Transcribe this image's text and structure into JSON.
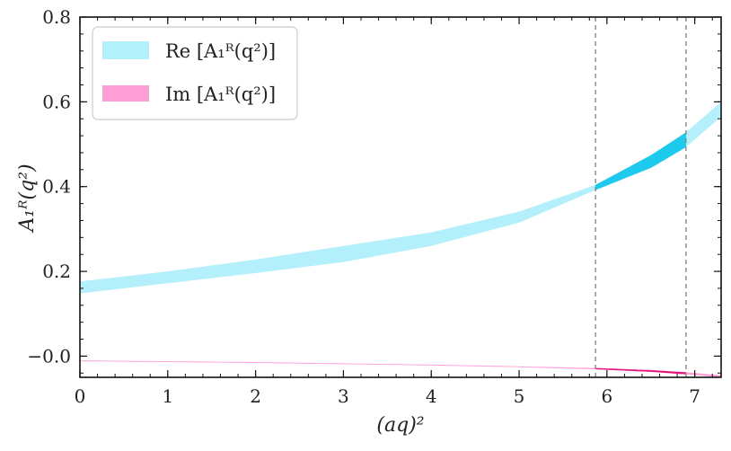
{
  "chart_data": {
    "type": "area",
    "xlabel": "(aq)²",
    "ylabel": "A₁ᴿ(q²)",
    "xlim": [
      0,
      7.3
    ],
    "ylim": [
      -0.05,
      0.8
    ],
    "xticks": [
      0,
      1,
      2,
      3,
      4,
      5,
      6,
      7
    ],
    "yticks": [
      0.8,
      0.6,
      0.4,
      0.2,
      -0.0
    ],
    "ytick_labels": [
      "0.8",
      "0.6",
      "0.4",
      "0.2",
      "−0.0"
    ],
    "grid": false,
    "legend": "top-left",
    "vlines": [
      5.87,
      6.9
    ],
    "series": [
      {
        "name": "Re [A₁ᴿ(q²)]",
        "color": "#b3f0fb",
        "highlight_color": "#1ec9ee",
        "x": [
          0,
          1,
          2,
          3,
          4,
          5,
          5.87,
          6.5,
          6.9,
          7.3
        ],
        "lower": [
          0.148,
          0.172,
          0.196,
          0.222,
          0.26,
          0.315,
          0.392,
          0.444,
          0.493,
          0.565
        ],
        "upper": [
          0.176,
          0.2,
          0.228,
          0.26,
          0.292,
          0.341,
          0.404,
          0.474,
          0.528,
          0.6
        ]
      },
      {
        "name": "Im [A₁ᴿ(q²)]",
        "color": "#ff9fd8",
        "highlight_color": "#e6157d",
        "x": [
          0,
          1,
          2,
          3,
          4,
          5,
          5.87,
          6.5,
          6.9,
          7.3
        ],
        "lower": [
          -0.012,
          -0.014,
          -0.016,
          -0.019,
          -0.022,
          -0.026,
          -0.031,
          -0.037,
          -0.043,
          -0.05
        ],
        "upper": [
          -0.01,
          -0.012,
          -0.014,
          -0.017,
          -0.02,
          -0.024,
          -0.028,
          -0.033,
          -0.038,
          -0.045
        ]
      }
    ]
  }
}
